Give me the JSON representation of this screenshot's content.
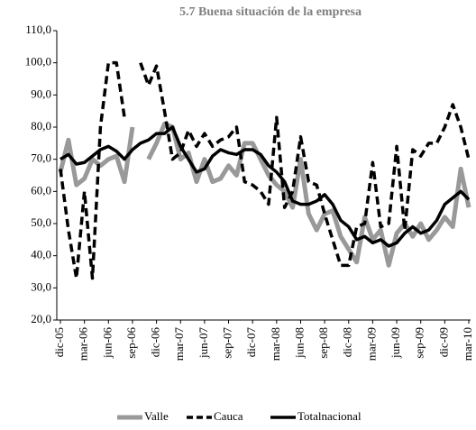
{
  "chart_data": {
    "type": "line",
    "title": "5.7 Buena situación de la empresa",
    "categories": [
      "dic-05",
      null,
      null,
      "mar-06",
      null,
      null,
      "jun-06",
      null,
      null,
      "sep-06",
      null,
      null,
      "dic-06",
      null,
      null,
      "mar-07",
      null,
      null,
      "jun-07",
      null,
      null,
      "sep-07",
      null,
      null,
      "dic-07",
      null,
      null,
      "mar-08",
      null,
      null,
      "jun-08",
      null,
      null,
      "sep-08",
      null,
      null,
      "dic-08",
      null,
      null,
      "mar-09",
      null,
      null,
      "jun-09",
      null,
      null,
      "sep-09",
      null,
      null,
      "dic-09",
      null,
      null,
      "mar-10"
    ],
    "series": [
      {
        "name": "Valle",
        "color": "#999999",
        "dash": false,
        "width": 5,
        "values": [
          66,
          76,
          62,
          64,
          70,
          68,
          70,
          71,
          63,
          80,
          null,
          70,
          75,
          81,
          80,
          70,
          72,
          63,
          70,
          63,
          64,
          68,
          65,
          75,
          75,
          70,
          65,
          62,
          60,
          55,
          70,
          53,
          48,
          53,
          54,
          46,
          42,
          38,
          52,
          45,
          48,
          37,
          47,
          50,
          46,
          50,
          45,
          48,
          52,
          49,
          67,
          55
        ]
      },
      {
        "name": "Cauca",
        "color": "#000000",
        "dash": true,
        "width": 3.5,
        "values": [
          67,
          48,
          33,
          60,
          33,
          80,
          100,
          100,
          83,
          null,
          100,
          93,
          99,
          85,
          70,
          72,
          79,
          74,
          78,
          74,
          76,
          77,
          80,
          63,
          62,
          60,
          56,
          83,
          55,
          60,
          77,
          63,
          62,
          53,
          45,
          37,
          37,
          49,
          50,
          69,
          49,
          50,
          74,
          48,
          73,
          71,
          75,
          75,
          80,
          87,
          80,
          70
        ]
      },
      {
        "name": "Totalnacional",
        "color": "#000000",
        "dash": false,
        "width": 3.5,
        "values": [
          70,
          71.5,
          68.5,
          69,
          71,
          73,
          74,
          72.5,
          70,
          73,
          75,
          76,
          78,
          78,
          80,
          74,
          70,
          66,
          67,
          71,
          73,
          72,
          71.5,
          73,
          73,
          71.5,
          68,
          66,
          63,
          57,
          56,
          56,
          57,
          59,
          56,
          51,
          49,
          45,
          46,
          44,
          45,
          43,
          44,
          47,
          49,
          47,
          48,
          51,
          56,
          58,
          60,
          57.5
        ]
      }
    ],
    "ylim": [
      20,
      110
    ],
    "yticks": [
      {
        "value": 20,
        "label": "20,0"
      },
      {
        "value": 30,
        "label": "30,0"
      },
      {
        "value": 40,
        "label": "40,0"
      },
      {
        "value": 50,
        "label": "50,0"
      },
      {
        "value": 60,
        "label": "60,0"
      },
      {
        "value": 70,
        "label": "70,0"
      },
      {
        "value": 80,
        "label": "80,0"
      },
      {
        "value": 90,
        "label": "90,0"
      },
      {
        "value": 100,
        "label": "100,0"
      },
      {
        "value": 110,
        "label": "110,0"
      }
    ],
    "grid": false,
    "legend": "bottom"
  }
}
